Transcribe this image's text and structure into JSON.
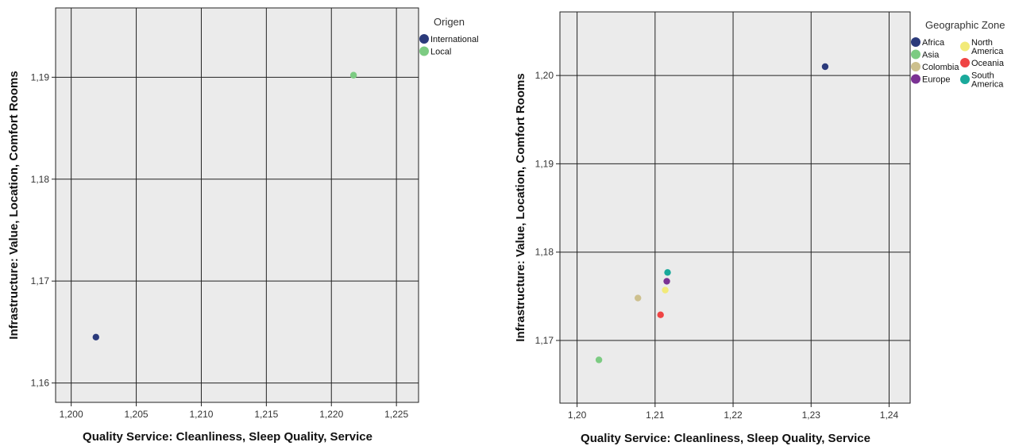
{
  "chart_data": [
    {
      "type": "scatter",
      "xlabel": "Quality Service: Cleanliness, Sleep Quality, Service",
      "ylabel": "Infrastructure: Value, Location, Comfort Rooms",
      "xlim": [
        1.1988,
        1.2267
      ],
      "ylim": [
        1.1581,
        1.1968
      ],
      "x_ticks": [
        1.2,
        1.205,
        1.21,
        1.215,
        1.22,
        1.225
      ],
      "x_tick_labels": [
        "1,200",
        "1,205",
        "1,210",
        "1,215",
        "1,220",
        "1,225"
      ],
      "y_ticks": [
        1.16,
        1.17,
        1.18,
        1.19
      ],
      "y_tick_labels": [
        "1,16",
        "1,17",
        "1,18",
        "1,19"
      ],
      "grid": true,
      "legend": {
        "title": "Origen",
        "placement": "top-right outside",
        "columns": 1,
        "entries": [
          {
            "label": "International",
            "color": "#2b3a7b"
          },
          {
            "label": "Local",
            "color": "#7ccb82"
          }
        ]
      },
      "points": [
        {
          "group": "International",
          "x": 1.2019,
          "y": 1.1645,
          "color": "#2b3a7b"
        },
        {
          "group": "Local",
          "x": 1.2217,
          "y": 1.1902,
          "color": "#7ccb82"
        }
      ]
    },
    {
      "type": "scatter",
      "xlabel": "Quality Service: Cleanliness, Sleep Quality, Service",
      "ylabel": "Infrastructure: Value, Location, Comfort Rooms",
      "xlim": [
        1.1978,
        1.2427
      ],
      "ylim": [
        1.1629,
        1.2072
      ],
      "x_ticks": [
        1.2,
        1.21,
        1.22,
        1.23,
        1.24
      ],
      "x_tick_labels": [
        "1,20",
        "1,21",
        "1,22",
        "1,23",
        "1,24"
      ],
      "y_ticks": [
        1.17,
        1.18,
        1.19,
        1.2
      ],
      "y_tick_labels": [
        "1,17",
        "1,18",
        "1,19",
        "1,20"
      ],
      "grid": true,
      "legend": {
        "title": "Geographic Zone",
        "placement": "top-right outside",
        "columns": 2,
        "entries": [
          {
            "label": [
              "Africa"
            ],
            "color": "#2b3a7b"
          },
          {
            "label": [
              "Asia"
            ],
            "color": "#7ccb82"
          },
          {
            "label": [
              "Colombia"
            ],
            "color": "#cdc08e"
          },
          {
            "label": [
              "Europe"
            ],
            "color": "#7b3294"
          },
          {
            "label": [
              "North",
              "America"
            ],
            "color": "#f2ea78"
          },
          {
            "label": [
              "Oceania"
            ],
            "color": "#ef4444"
          },
          {
            "label": [
              "South",
              "America"
            ],
            "color": "#1aa99b"
          }
        ]
      },
      "points": [
        {
          "group": "Africa",
          "x": 1.2318,
          "y": 1.201,
          "color": "#2b3a7b"
        },
        {
          "group": "Asia",
          "x": 1.2028,
          "y": 1.1678,
          "color": "#7ccb82"
        },
        {
          "group": "Colombia",
          "x": 1.2078,
          "y": 1.1748,
          "color": "#cdc08e"
        },
        {
          "group": "Europe",
          "x": 1.2115,
          "y": 1.1767,
          "color": "#7b3294"
        },
        {
          "group": "North America",
          "x": 1.2113,
          "y": 1.1757,
          "color": "#f2ea78"
        },
        {
          "group": "Oceania",
          "x": 1.2107,
          "y": 1.1729,
          "color": "#ef4444"
        },
        {
          "group": "South America",
          "x": 1.2116,
          "y": 1.1777,
          "color": "#1aa99b"
        }
      ]
    }
  ]
}
